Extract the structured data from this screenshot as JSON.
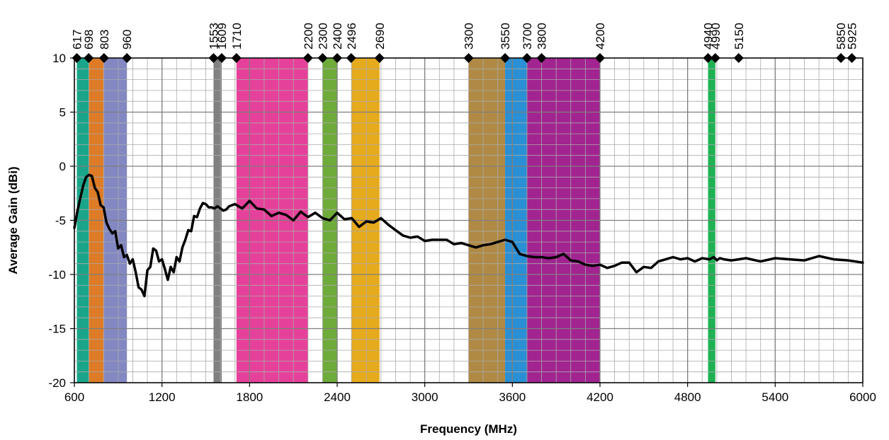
{
  "chart_data": {
    "type": "line",
    "xlabel": "Frequency (MHz)",
    "ylabel": "Average Gain (dBi)",
    "xlim": [
      600,
      6000
    ],
    "ylim": [
      -20,
      10
    ],
    "x_ticks": [
      600,
      1200,
      1800,
      2400,
      3000,
      3600,
      4200,
      4800,
      5400,
      6000
    ],
    "y_ticks": [
      10,
      5,
      0,
      -5,
      -10,
      -15,
      -20
    ],
    "x_minor_step": 100,
    "y_minor_step": 1,
    "grid": true,
    "bands": [
      {
        "x0": 617,
        "x1": 698,
        "color": "#1aa58a"
      },
      {
        "x0": 698,
        "x1": 803,
        "color": "#dd7b26"
      },
      {
        "x0": 803,
        "x1": 960,
        "color": "#8388c2"
      },
      {
        "x0": 1553,
        "x1": 1609,
        "color": "#808080"
      },
      {
        "x0": 1710,
        "x1": 2200,
        "color": "#e6419a"
      },
      {
        "x0": 2300,
        "x1": 2400,
        "color": "#6fab3a"
      },
      {
        "x0": 2496,
        "x1": 2690,
        "color": "#e6aa1d"
      },
      {
        "x0": 3300,
        "x1": 3550,
        "color": "#b08a45"
      },
      {
        "x0": 3550,
        "x1": 3700,
        "color": "#2a8fd4"
      },
      {
        "x0": 3700,
        "x1": 4200,
        "color": "#a12490"
      },
      {
        "x0": 4940,
        "x1": 4990,
        "color": "#1fb154"
      }
    ],
    "markers": {
      "y": 10,
      "labels": [
        "617",
        "698",
        "803",
        "960",
        "1553",
        "1609",
        "1710",
        "2200",
        "2300",
        "2400",
        "2496",
        "2690",
        "3300",
        "3550",
        "3700",
        "3800",
        "4200",
        "4940",
        "4990",
        "5150",
        "5850",
        "5925"
      ],
      "x": [
        617,
        698,
        803,
        960,
        1553,
        1609,
        1710,
        2200,
        2300,
        2400,
        2496,
        2690,
        3300,
        3550,
        3700,
        3800,
        4200,
        4940,
        4990,
        5150,
        5850,
        5925
      ]
    },
    "series": [
      {
        "color": "#000000",
        "x": [
          600,
          620,
          640,
          660,
          680,
          700,
          720,
          740,
          760,
          780,
          800,
          820,
          840,
          860,
          880,
          900,
          920,
          940,
          960,
          980,
          1000,
          1020,
          1040,
          1060,
          1080,
          1100,
          1120,
          1140,
          1160,
          1180,
          1200,
          1220,
          1240,
          1260,
          1280,
          1300,
          1320,
          1340,
          1360,
          1380,
          1400,
          1420,
          1440,
          1460,
          1480,
          1500,
          1520,
          1540,
          1560,
          1580,
          1600,
          1620,
          1640,
          1660,
          1700,
          1750,
          1800,
          1850,
          1900,
          1950,
          2000,
          2050,
          2100,
          2150,
          2200,
          2250,
          2300,
          2350,
          2400,
          2450,
          2500,
          2550,
          2600,
          2650,
          2700,
          2750,
          2800,
          2850,
          2900,
          2950,
          3000,
          3050,
          3100,
          3150,
          3200,
          3250,
          3300,
          3350,
          3400,
          3450,
          3500,
          3550,
          3600,
          3650,
          3700,
          3750,
          3800,
          3850,
          3900,
          3950,
          4000,
          4050,
          4100,
          4150,
          4200,
          4250,
          4300,
          4350,
          4400,
          4450,
          4500,
          4550,
          4600,
          4650,
          4700,
          4750,
          4800,
          4850,
          4900,
          4950,
          4980,
          5000,
          5020,
          5050,
          5100,
          5150,
          5200,
          5300,
          5400,
          5500,
          5600,
          5700,
          5800,
          5900,
          6000
        ],
        "y": [
          -5.7,
          -4.2,
          -3.0,
          -1.8,
          -1.0,
          -0.8,
          -0.9,
          -2.0,
          -2.4,
          -3.6,
          -3.8,
          -5.2,
          -5.8,
          -6.2,
          -6.0,
          -7.6,
          -7.3,
          -8.4,
          -8.2,
          -9.0,
          -8.6,
          -9.8,
          -11.2,
          -11.4,
          -12.0,
          -9.6,
          -9.3,
          -7.6,
          -7.8,
          -8.8,
          -8.6,
          -9.5,
          -10.5,
          -9.3,
          -9.8,
          -8.4,
          -8.8,
          -7.5,
          -6.8,
          -5.9,
          -6.0,
          -4.6,
          -4.7,
          -3.9,
          -3.4,
          -3.5,
          -3.8,
          -3.8,
          -3.9,
          -3.7,
          -3.9,
          -4.1,
          -4.0,
          -3.7,
          -3.5,
          -3.9,
          -3.2,
          -3.9,
          -4.0,
          -4.6,
          -4.3,
          -4.5,
          -5.0,
          -4.2,
          -4.7,
          -4.3,
          -4.8,
          -5.0,
          -4.3,
          -4.9,
          -4.8,
          -5.6,
          -5.1,
          -5.2,
          -4.8,
          -5.4,
          -5.9,
          -6.4,
          -6.6,
          -6.5,
          -6.9,
          -6.8,
          -6.8,
          -6.8,
          -7.2,
          -7.1,
          -7.3,
          -7.5,
          -7.3,
          -7.2,
          -7.0,
          -6.8,
          -7.0,
          -8.1,
          -8.3,
          -8.4,
          -8.4,
          -8.5,
          -8.4,
          -8.1,
          -8.7,
          -8.8,
          -9.1,
          -9.2,
          -9.1,
          -9.4,
          -9.2,
          -8.9,
          -8.9,
          -9.8,
          -9.3,
          -9.4,
          -8.8,
          -8.6,
          -8.4,
          -8.6,
          -8.5,
          -8.8,
          -8.5,
          -8.6,
          -8.4,
          -8.7,
          -8.5,
          -8.6,
          -8.7,
          -8.6,
          -8.5,
          -8.8,
          -8.5,
          -8.6,
          -8.7,
          -8.3,
          -8.6,
          -8.7,
          -8.9
        ]
      }
    ]
  }
}
